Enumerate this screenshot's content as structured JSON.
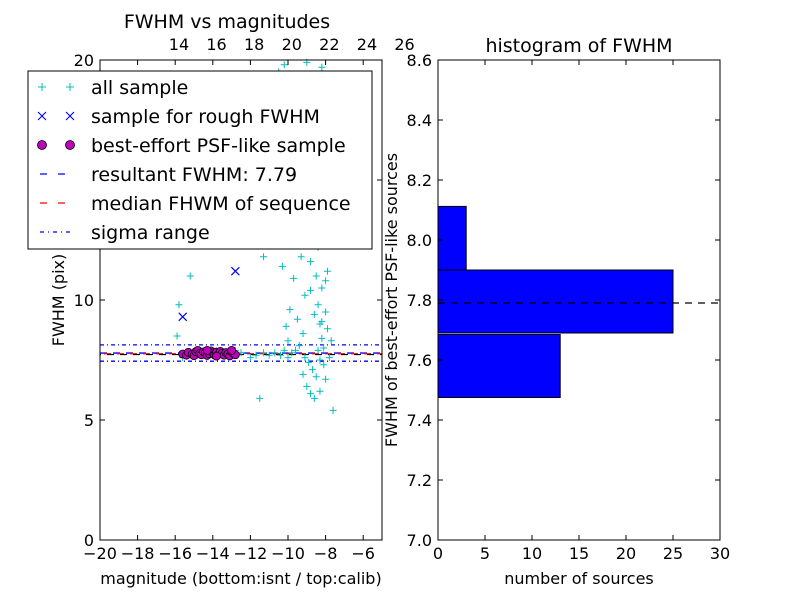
{
  "chart_data": [
    {
      "type": "scatter",
      "title": "FWHM vs magnitudes",
      "xlabel": "magnitude (bottom:isnt / top:calib)",
      "ylabel": "FWHM (pix)",
      "xlim": [
        -20,
        -5
      ],
      "ylim": [
        0,
        20
      ],
      "xticks": [
        "−20",
        "−18",
        "−16",
        "−14",
        "−12",
        "−10",
        "−8",
        "−6"
      ],
      "xtick_values": [
        -20,
        -18,
        -16,
        -14,
        -12,
        -10,
        -8,
        -6
      ],
      "yticks": [
        "0",
        "5",
        "10",
        "15",
        "20"
      ],
      "ytick_values": [
        0,
        5,
        10,
        15,
        20
      ],
      "top_axis_ticks": [
        "14",
        "16",
        "18",
        "20",
        "22",
        "24",
        "26"
      ],
      "top_axis_values": [
        14,
        16,
        18,
        20,
        22,
        24,
        26
      ],
      "top_axis_offset": 29.8,
      "legend": [
        {
          "label": "all sample",
          "marker": "+",
          "color": "#00bfbf"
        },
        {
          "label": "sample for rough FWHM",
          "marker": "x",
          "color": "#0000ff"
        },
        {
          "label": "best-effort PSF-like sample",
          "marker": "o",
          "color": "#bf00bf"
        },
        {
          "label": "resultant FWHM: 7.79",
          "marker": "dashed",
          "color": "#0000ff"
        },
        {
          "label": "median FHWM of sequence",
          "marker": "dashed",
          "color": "#ff0000"
        },
        {
          "label": "sigma range",
          "marker": "dashdot",
          "color": "#0000ff"
        }
      ],
      "legend_position": "upper-left",
      "resultant_fwhm": 7.79,
      "median_fwhm": 7.76,
      "sigma_range": [
        7.45,
        8.13
      ],
      "series": [
        {
          "marker": "+",
          "color": "#00bfbf",
          "points": [
            [
              -15.8,
              9.8
            ],
            [
              -15.5,
              19.2
            ],
            [
              -15.9,
              8.5
            ],
            [
              -14.5,
              15.1
            ],
            [
              -15.2,
              11.0
            ],
            [
              -13.4,
              15.8
            ],
            [
              -11.3,
              11.8
            ],
            [
              -11.5,
              5.9
            ],
            [
              -10.5,
              19.5
            ],
            [
              -10.2,
              19.8
            ],
            [
              -9.4,
              18.8
            ],
            [
              -9.0,
              19.9
            ],
            [
              -8.2,
              19.7
            ],
            [
              -7.6,
              5.4
            ],
            [
              -8.8,
              10.4
            ],
            [
              -9.5,
              9.2
            ],
            [
              -10.0,
              8.3
            ],
            [
              -12.8,
              7.9
            ],
            [
              -12.0,
              7.6
            ],
            [
              -11.7,
              7.7
            ],
            [
              -11.3,
              7.8
            ],
            [
              -11.0,
              7.7
            ],
            [
              -10.7,
              7.8
            ],
            [
              -10.4,
              7.7
            ],
            [
              -10.2,
              7.9
            ],
            [
              -10.0,
              7.6
            ],
            [
              -9.8,
              7.8
            ],
            [
              -9.6,
              7.9
            ],
            [
              -9.4,
              8.1
            ],
            [
              -9.2,
              8.6
            ],
            [
              -9.1,
              10.2
            ],
            [
              -9.3,
              11.8
            ],
            [
              -9.0,
              12.9
            ],
            [
              -8.9,
              14.2
            ],
            [
              -8.8,
              15.5
            ],
            [
              -8.7,
              16.8
            ],
            [
              -8.9,
              17.5
            ],
            [
              -8.6,
              13.5
            ],
            [
              -8.5,
              11.0
            ],
            [
              -8.4,
              9.8
            ],
            [
              -8.3,
              9.0
            ],
            [
              -8.2,
              8.4
            ],
            [
              -8.1,
              7.3
            ],
            [
              -8.0,
              6.7
            ],
            [
              -8.3,
              6.2
            ],
            [
              -8.5,
              6.8
            ],
            [
              -8.7,
              7.1
            ],
            [
              -8.9,
              7.4
            ],
            [
              -9.1,
              7.6
            ],
            [
              -8.4,
              12.2
            ],
            [
              -8.6,
              14.8
            ],
            [
              -8.2,
              10.5
            ],
            [
              -8.0,
              9.5
            ],
            [
              -7.9,
              8.8
            ],
            [
              -8.1,
              8.0
            ],
            [
              -8.3,
              7.5
            ],
            [
              -8.6,
              9.4
            ],
            [
              -8.8,
              11.6
            ],
            [
              -8.5,
              15.9
            ],
            [
              -8.3,
              14.3
            ],
            [
              -8.1,
              12.7
            ],
            [
              -7.9,
              11.2
            ],
            [
              -9.5,
              13.3
            ],
            [
              -9.7,
              10.9
            ],
            [
              -9.9,
              9.6
            ],
            [
              -10.1,
              8.9
            ],
            [
              -10.3,
              11.4
            ],
            [
              -9.2,
              6.9
            ],
            [
              -9.0,
              6.4
            ],
            [
              -8.8,
              6.1
            ],
            [
              -8.6,
              5.9
            ],
            [
              -8.4,
              7.9
            ],
            [
              -8.2,
              9.1
            ],
            [
              -8.0,
              10.8
            ],
            [
              -7.8,
              7.6
            ],
            [
              -7.7,
              8.3
            ],
            [
              -13.0,
              7.7
            ],
            [
              -12.5,
              7.8
            ],
            [
              -14.0,
              7.8
            ],
            [
              -14.8,
              7.7
            ],
            [
              -15.6,
              7.6
            ]
          ]
        },
        {
          "marker": "x",
          "color": "#0000ff",
          "points": [
            [
              -15.6,
              9.3
            ],
            [
              -12.8,
              11.2
            ]
          ]
        },
        {
          "marker": "o",
          "color": "#bf00bf",
          "points": [
            [
              -15.6,
              7.75
            ],
            [
              -15.4,
              7.7
            ],
            [
              -15.3,
              7.82
            ],
            [
              -15.1,
              7.74
            ],
            [
              -15.0,
              7.68
            ],
            [
              -14.9,
              7.85
            ],
            [
              -14.8,
              7.9
            ],
            [
              -14.7,
              7.77
            ],
            [
              -14.6,
              7.72
            ],
            [
              -14.5,
              7.84
            ],
            [
              -14.4,
              7.8
            ],
            [
              -14.3,
              7.69
            ],
            [
              -14.2,
              7.76
            ],
            [
              -14.1,
              7.88
            ],
            [
              -14.0,
              7.79
            ],
            [
              -13.9,
              7.71
            ],
            [
              -13.8,
              7.83
            ],
            [
              -13.7,
              7.74
            ],
            [
              -13.6,
              7.86
            ],
            [
              -13.5,
              7.78
            ],
            [
              -13.4,
              7.7
            ],
            [
              -13.3,
              7.81
            ],
            [
              -13.2,
              7.75
            ],
            [
              -13.1,
              7.67
            ],
            [
              -13.0,
              7.84
            ],
            [
              -12.9,
              7.77
            ],
            [
              -12.8,
              7.72
            ],
            [
              -14.3,
              7.9
            ],
            [
              -13.8,
              7.66
            ],
            [
              -13.0,
              7.9
            ]
          ]
        }
      ]
    },
    {
      "type": "bar",
      "orientation": "horizontal",
      "title": "histogram of FWHM",
      "xlabel": "number of sources",
      "ylabel": "FWHM of best-effort PSF-like sources",
      "xlim": [
        0,
        30
      ],
      "ylim": [
        7.0,
        8.6
      ],
      "xticks": [
        "0",
        "5",
        "10",
        "15",
        "20",
        "25",
        "30"
      ],
      "xtick_values": [
        0,
        5,
        10,
        15,
        20,
        25,
        30
      ],
      "yticks": [
        "7.0",
        "7.2",
        "7.4",
        "7.6",
        "7.8",
        "8.0",
        "8.2",
        "8.4",
        "8.6"
      ],
      "ytick_values": [
        7.0,
        7.2,
        7.4,
        7.6,
        7.8,
        8.0,
        8.2,
        8.4,
        8.6
      ],
      "bars": [
        {
          "y0": 7.475,
          "y1": 7.685,
          "count": 13
        },
        {
          "y0": 7.69,
          "y1": 7.9,
          "count": 25
        },
        {
          "y0": 7.9,
          "y1": 8.112,
          "count": 3
        }
      ],
      "bar_color": "#0000ff",
      "reference_line": 7.79
    }
  ]
}
